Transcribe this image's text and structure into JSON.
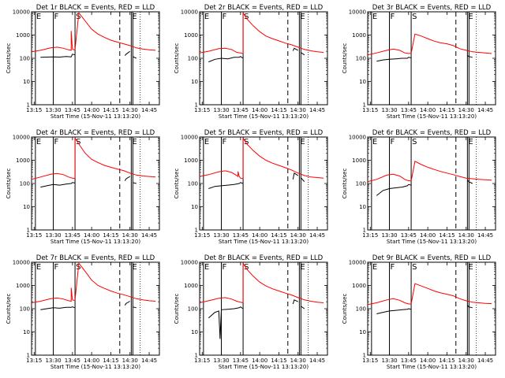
{
  "figure": {
    "x_ticks": [
      "13:15",
      "13:30",
      "13:45",
      "14:00",
      "14:15",
      "14:30",
      "14:45"
    ],
    "y_ticks": [
      "1",
      "10",
      "100",
      "1000",
      "10000"
    ],
    "y_scale": "log",
    "ylim": [
      1,
      10000
    ],
    "xlabel": "Start Time (15-Nov-11 13:13:20)",
    "ylabel": "Counts/sec",
    "series_colors": {
      "events": "#000000",
      "lld": "#ff0000"
    },
    "markers": [
      {
        "label": "E",
        "time": "13:16"
      },
      {
        "label": "F",
        "time": "13:30"
      },
      {
        "label": "S",
        "time": "13:47"
      },
      {
        "label": "E",
        "time": "14:31"
      }
    ],
    "dashed_lines": [
      "14:22"
    ],
    "dotted_lines": [
      "14:38"
    ]
  },
  "chart_data": [
    {
      "type": "line",
      "title": "Det 1r BLACK = Events, RED = LLD",
      "series": [
        {
          "name": "Events",
          "x": [
            "13:20",
            "13:30",
            "13:35",
            "13:40",
            "13:44",
            "13:45",
            "13:47",
            "13:47",
            "14:26",
            "14:27",
            "14:30",
            "14:31",
            "14:32",
            "14:35"
          ],
          "y": [
            110,
            115,
            112,
            120,
            115,
            150,
            140,
            null,
            130,
            150,
            200,
            null,
            120,
            100
          ]
        },
        {
          "name": "LLD",
          "x": [
            "13:13",
            "13:20",
            "13:28",
            "13:33",
            "13:38",
            "13:42",
            "13:44",
            "13:44",
            "13:45",
            "13:46",
            "13:47",
            "13:50",
            "13:55",
            "14:00",
            "14:05",
            "14:10",
            "14:15",
            "14:20",
            "14:25",
            "14:30",
            "14:35",
            "14:40",
            "14:45",
            "14:50"
          ],
          "y": [
            190,
            220,
            280,
            300,
            270,
            230,
            220,
            1500,
            250,
            230,
            240,
            9000,
            4000,
            1800,
            1100,
            800,
            600,
            500,
            420,
            350,
            280,
            250,
            230,
            220
          ]
        }
      ]
    },
    {
      "type": "line",
      "title": "Det 2r BLACK = Events, RED = LLD",
      "series": [
        {
          "name": "Events",
          "x": [
            "13:20",
            "13:25",
            "13:30",
            "13:35",
            "13:40",
            "13:44",
            "13:45",
            "13:47",
            "13:47",
            "14:26",
            "14:27",
            "14:30",
            "14:31",
            "14:32",
            "14:35"
          ],
          "y": [
            70,
            90,
            100,
            95,
            110,
            110,
            120,
            100,
            null,
            210,
            270,
            220,
            null,
            180,
            140
          ]
        },
        {
          "name": "LLD",
          "x": [
            "13:13",
            "13:20",
            "13:28",
            "13:33",
            "13:38",
            "13:42",
            "13:45",
            "13:47",
            "13:47",
            "13:50",
            "13:55",
            "14:00",
            "14:05",
            "14:10",
            "14:15",
            "14:20",
            "14:25",
            "14:30",
            "14:35",
            "14:40",
            "14:45",
            "14:50"
          ],
          "y": [
            170,
            200,
            260,
            270,
            240,
            180,
            170,
            160,
            9000,
            5000,
            2500,
            1400,
            900,
            700,
            560,
            450,
            380,
            300,
            240,
            210,
            190,
            180
          ]
        }
      ]
    },
    {
      "type": "line",
      "title": "Det 3r BLACK = Events, RED = LLD",
      "series": [
        {
          "name": "Events",
          "x": [
            "13:20",
            "13:25",
            "13:30",
            "13:35",
            "13:40",
            "13:44",
            "13:45",
            "13:47",
            "13:47",
            "14:31",
            "14:32",
            "14:35"
          ],
          "y": [
            75,
            85,
            90,
            95,
            100,
            100,
            110,
            105,
            null,
            130,
            120,
            110
          ]
        },
        {
          "name": "LLD",
          "x": [
            "13:13",
            "13:20",
            "13:28",
            "13:33",
            "13:38",
            "13:42",
            "13:45",
            "13:47",
            "13:50",
            "13:55",
            "14:00",
            "14:05",
            "14:10",
            "14:15",
            "14:20",
            "14:25",
            "14:30",
            "14:35",
            "14:40",
            "14:45",
            "14:50"
          ],
          "y": [
            140,
            170,
            220,
            250,
            220,
            170,
            160,
            165,
            1100,
            900,
            700,
            550,
            460,
            420,
            350,
            260,
            220,
            190,
            180,
            170,
            160
          ]
        }
      ]
    },
    {
      "type": "line",
      "title": "Det 4r BLACK = Events, RED = LLD",
      "series": [
        {
          "name": "Events",
          "x": [
            "13:20",
            "13:25",
            "13:30",
            "13:35",
            "13:40",
            "13:44",
            "13:45",
            "13:47",
            "13:47",
            "14:26",
            "14:27",
            "14:30",
            "14:31",
            "14:32",
            "14:35"
          ],
          "y": [
            70,
            80,
            90,
            85,
            95,
            100,
            110,
            105,
            null,
            130,
            160,
            200,
            null,
            110,
            100
          ]
        },
        {
          "name": "LLD",
          "x": [
            "13:13",
            "13:20",
            "13:28",
            "13:33",
            "13:38",
            "13:42",
            "13:45",
            "13:47",
            "13:47",
            "13:50",
            "13:55",
            "14:00",
            "14:05",
            "14:10",
            "14:15",
            "14:20",
            "14:25",
            "14:30",
            "14:35",
            "14:40",
            "14:45",
            "14:50"
          ],
          "y": [
            150,
            190,
            250,
            270,
            240,
            190,
            170,
            165,
            9000,
            5000,
            2000,
            1100,
            800,
            600,
            500,
            420,
            360,
            280,
            230,
            210,
            200,
            190
          ]
        }
      ]
    },
    {
      "type": "line",
      "title": "Det 5r BLACK = Events, RED = LLD",
      "series": [
        {
          "name": "Events",
          "x": [
            "13:20",
            "13:25",
            "13:30",
            "13:35",
            "13:40",
            "13:44",
            "13:45",
            "13:47",
            "13:47",
            "14:26",
            "14:27",
            "14:30",
            "14:31",
            "14:32",
            "14:35"
          ],
          "y": [
            60,
            75,
            80,
            85,
            90,
            100,
            110,
            100,
            null,
            150,
            280,
            220,
            null,
            180,
            120
          ]
        },
        {
          "name": "LLD",
          "x": [
            "13:13",
            "13:20",
            "13:28",
            "13:33",
            "13:38",
            "13:42",
            "13:43",
            "13:43",
            "13:44",
            "13:45",
            "13:47",
            "13:47",
            "13:50",
            "13:55",
            "14:00",
            "14:05",
            "14:10",
            "14:15",
            "14:20",
            "14:25",
            "14:30",
            "14:35",
            "14:40",
            "14:45",
            "14:50"
          ],
          "y": [
            200,
            240,
            320,
            350,
            300,
            220,
            200,
            330,
            200,
            170,
            160,
            9000,
            5000,
            2600,
            1500,
            1000,
            750,
            600,
            480,
            380,
            280,
            220,
            190,
            180,
            170
          ]
        }
      ]
    },
    {
      "type": "line",
      "title": "Det 6r BLACK = Events, RED = LLD",
      "series": [
        {
          "name": "Events",
          "x": [
            "13:20",
            "13:25",
            "13:30",
            "13:35",
            "13:40",
            "13:44",
            "13:45",
            "13:47",
            "13:47",
            "14:31",
            "14:32",
            "14:35"
          ],
          "y": [
            30,
            50,
            60,
            65,
            70,
            80,
            90,
            85,
            null,
            140,
            120,
            100
          ]
        },
        {
          "name": "LLD",
          "x": [
            "13:13",
            "13:20",
            "13:28",
            "13:33",
            "13:38",
            "13:42",
            "13:45",
            "13:47",
            "13:50",
            "13:55",
            "14:00",
            "14:05",
            "14:10",
            "14:15",
            "14:20",
            "14:25",
            "14:30",
            "14:35",
            "14:40",
            "14:45",
            "14:50"
          ],
          "y": [
            120,
            150,
            230,
            250,
            210,
            150,
            130,
            130,
            900,
            650,
            500,
            400,
            330,
            280,
            240,
            200,
            170,
            160,
            150,
            145,
            140
          ]
        }
      ]
    },
    {
      "type": "line",
      "title": "Det 7r BLACK = Events, RED = LLD",
      "series": [
        {
          "name": "Events",
          "x": [
            "13:20",
            "13:25",
            "13:30",
            "13:35",
            "13:40",
            "13:44",
            "13:45",
            "13:47",
            "13:47",
            "14:26",
            "14:27",
            "14:30",
            "14:31",
            "14:32",
            "14:35"
          ],
          "y": [
            90,
            100,
            110,
            105,
            115,
            115,
            120,
            110,
            null,
            140,
            170,
            210,
            null,
            120,
            110
          ]
        },
        {
          "name": "LLD",
          "x": [
            "13:13",
            "13:20",
            "13:28",
            "13:33",
            "13:38",
            "13:42",
            "13:44",
            "13:44",
            "13:45",
            "13:46",
            "13:47",
            "13:50",
            "13:55",
            "14:00",
            "14:05",
            "14:10",
            "14:15",
            "14:20",
            "14:25",
            "14:30",
            "14:35",
            "14:40",
            "14:45",
            "14:50"
          ],
          "y": [
            180,
            210,
            270,
            290,
            260,
            220,
            210,
            800,
            240,
            230,
            240,
            9000,
            4000,
            1700,
            1000,
            750,
            580,
            470,
            400,
            330,
            270,
            240,
            220,
            210
          ]
        }
      ]
    },
    {
      "type": "line",
      "title": "Det 8r BLACK = Events, RED = LLD",
      "series": [
        {
          "name": "Events",
          "x": [
            "13:20",
            "13:25",
            "13:28",
            "13:29",
            "13:30",
            "13:35",
            "13:40",
            "13:44",
            "13:45",
            "13:47",
            "13:47",
            "14:26",
            "14:27",
            "14:30",
            "14:31",
            "14:32",
            "14:35"
          ],
          "y": [
            40,
            70,
            80,
            5,
            90,
            95,
            100,
            110,
            120,
            100,
            null,
            160,
            240,
            200,
            null,
            130,
            100
          ]
        },
        {
          "name": "LLD",
          "x": [
            "13:13",
            "13:20",
            "13:28",
            "13:33",
            "13:38",
            "13:42",
            "13:45",
            "13:47",
            "13:47",
            "13:50",
            "13:55",
            "14:00",
            "14:05",
            "14:10",
            "14:15",
            "14:20",
            "14:25",
            "14:30",
            "14:35",
            "14:40",
            "14:45",
            "14:50"
          ],
          "y": [
            180,
            220,
            280,
            300,
            260,
            210,
            190,
            180,
            9000,
            5000,
            2500,
            1400,
            950,
            720,
            580,
            470,
            390,
            300,
            240,
            210,
            190,
            180
          ]
        }
      ]
    },
    {
      "type": "line",
      "title": "Det 9r BLACK = Events, RED = LLD",
      "series": [
        {
          "name": "Events",
          "x": [
            "13:20",
            "13:25",
            "13:30",
            "13:35",
            "13:40",
            "13:44",
            "13:45",
            "13:47",
            "13:47",
            "14:31",
            "14:32",
            "14:35"
          ],
          "y": [
            60,
            70,
            80,
            85,
            90,
            95,
            100,
            95,
            null,
            140,
            120,
            110
          ]
        },
        {
          "name": "LLD",
          "x": [
            "13:13",
            "13:20",
            "13:28",
            "13:33",
            "13:38",
            "13:42",
            "13:45",
            "13:47",
            "13:50",
            "13:55",
            "14:00",
            "14:05",
            "14:10",
            "14:15",
            "14:20",
            "14:25",
            "14:30",
            "14:35",
            "14:40",
            "14:45",
            "14:50"
          ],
          "y": [
            150,
            180,
            240,
            270,
            230,
            180,
            160,
            160,
            1200,
            950,
            750,
            580,
            480,
            420,
            360,
            270,
            220,
            190,
            180,
            170,
            165
          ]
        }
      ]
    }
  ]
}
